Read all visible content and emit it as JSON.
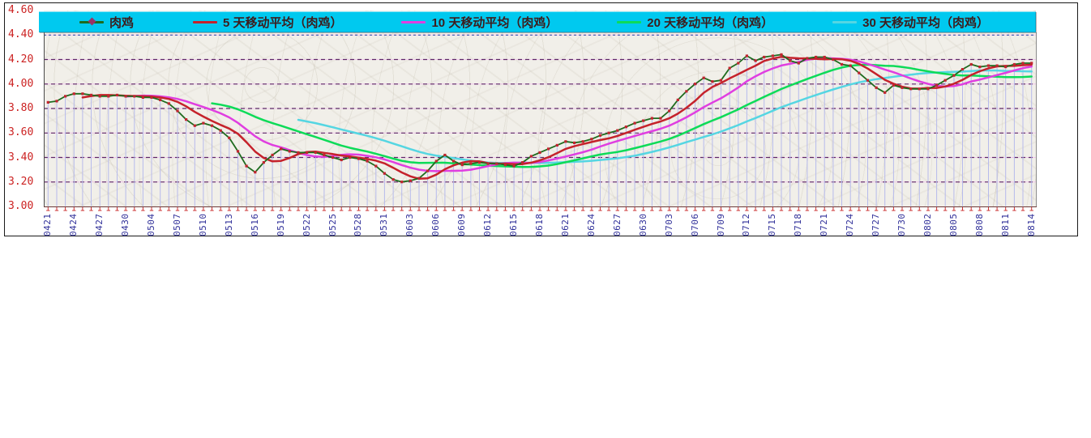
{
  "chart_data": {
    "type": "line",
    "legend_position": "top",
    "legend_background": "#00c9ef",
    "legend_text_color": "#3d1c1c",
    "plot_background": "#f1efe9",
    "gridline_color": "#5e2767",
    "gridline_gap_color": "#f0c6ec",
    "gridline_top_color": "#3a55b0",
    "drop_line_color": "#b6baec",
    "axis_line_color": "#6e3a3a",
    "tick_color": "#cc3333",
    "y_axis": {
      "min": 3.0,
      "max": 4.6,
      "step": 0.2,
      "label_color": "#cc2222",
      "tick_labels": [
        "4.60",
        "4.40",
        "4.20",
        "4.00",
        "3.80",
        "3.60",
        "3.40",
        "3.20",
        "3.00"
      ]
    },
    "x_axis": {
      "label_color": "#2f2f99",
      "label_every": 3,
      "tick_labels": [
        "0421",
        "0424",
        "0427",
        "0430",
        "0504",
        "0507",
        "0510",
        "0513",
        "0516",
        "0519",
        "0522",
        "0525",
        "0528",
        "0531",
        "0603",
        "0606",
        "0609",
        "0612",
        "0615",
        "0618",
        "0621",
        "0624",
        "0627",
        "0630",
        "0703",
        "0706",
        "0709",
        "0712",
        "0715",
        "0718",
        "0721",
        "0724",
        "0727",
        "0730",
        "0802",
        "0805",
        "0808",
        "0811",
        "0814"
      ]
    },
    "x": [
      "0421",
      "0422",
      "0423",
      "0424",
      "0425",
      "0426",
      "0427",
      "0428",
      "0429",
      "0430",
      "0502",
      "0503",
      "0504",
      "0505",
      "0506",
      "0507",
      "0508",
      "0509",
      "0510",
      "0511",
      "0512",
      "0513",
      "0514",
      "0515",
      "0516",
      "0517",
      "0518",
      "0519",
      "0520",
      "0521",
      "0522",
      "0523",
      "0524",
      "0525",
      "0526",
      "0527",
      "0528",
      "0529",
      "0530",
      "0531",
      "0601",
      "0602",
      "0603",
      "0604",
      "0605",
      "0606",
      "0607",
      "0608",
      "0609",
      "0610",
      "0611",
      "0612",
      "0613",
      "0614",
      "0615",
      "0616",
      "0617",
      "0618",
      "0619",
      "0620",
      "0621",
      "0622",
      "0623",
      "0624",
      "0625",
      "0626",
      "0627",
      "0628",
      "0629",
      "0630",
      "0701",
      "0702",
      "0703",
      "0704",
      "0705",
      "0706",
      "0707",
      "0708",
      "0709",
      "0710",
      "0711",
      "0712",
      "0713",
      "0714",
      "0715",
      "0716",
      "0717",
      "0718",
      "0719",
      "0720",
      "0721",
      "0722",
      "0723",
      "0724",
      "0725",
      "0726",
      "0727",
      "0728",
      "0729",
      "0730",
      "0731",
      "0801",
      "0802",
      "0803",
      "0804",
      "0805",
      "0806",
      "0807",
      "0808",
      "0809",
      "0810",
      "0811",
      "0812",
      "0813",
      "0814"
    ],
    "series": [
      {
        "name": "肉鸡",
        "type": "line+markers",
        "color": "#1e6b1e",
        "marker_color": "#c2252f",
        "key_marker_color": "#993366",
        "values": [
          3.85,
          3.86,
          3.9,
          3.92,
          3.92,
          3.91,
          3.9,
          3.9,
          3.91,
          3.9,
          3.9,
          3.89,
          3.89,
          3.87,
          3.84,
          3.78,
          3.71,
          3.66,
          3.68,
          3.66,
          3.62,
          3.56,
          3.45,
          3.33,
          3.28,
          3.36,
          3.42,
          3.47,
          3.45,
          3.44,
          3.44,
          3.44,
          3.42,
          3.4,
          3.38,
          3.4,
          3.39,
          3.37,
          3.33,
          3.27,
          3.22,
          3.2,
          3.21,
          3.23,
          3.29,
          3.37,
          3.42,
          3.37,
          3.34,
          3.35,
          3.36,
          3.35,
          3.35,
          3.34,
          3.33,
          3.36,
          3.41,
          3.44,
          3.47,
          3.5,
          3.53,
          3.52,
          3.53,
          3.55,
          3.58,
          3.6,
          3.62,
          3.65,
          3.68,
          3.7,
          3.72,
          3.72,
          3.78,
          3.87,
          3.94,
          4.0,
          4.05,
          4.02,
          4.03,
          4.13,
          4.17,
          4.23,
          4.19,
          4.22,
          4.23,
          4.24,
          4.19,
          4.17,
          4.21,
          4.22,
          4.22,
          4.2,
          4.16,
          4.15,
          4.09,
          4.03,
          3.97,
          3.93,
          3.99,
          3.97,
          3.96,
          3.96,
          3.96,
          3.99,
          4.03,
          4.07,
          4.12,
          4.16,
          4.14,
          4.15,
          4.15,
          4.14,
          4.16,
          4.17,
          4.17
        ]
      },
      {
        "name": "5 天移动平均（肉鸡）",
        "type": "line",
        "color": "#c5222b",
        "derived": "moving_average",
        "window": 5
      },
      {
        "name": "10 天移动平均（肉鸡）",
        "type": "line",
        "color": "#e03ee0",
        "derived": "moving_average",
        "window": 10
      },
      {
        "name": "20 天移动平均（肉鸡）",
        "type": "line",
        "color": "#0ddb58",
        "derived": "moving_average",
        "window": 20
      },
      {
        "name": "30 天移动平均（肉鸡）",
        "type": "line",
        "color": "#55d6e2",
        "derived": "moving_average",
        "window": 30
      }
    ]
  }
}
